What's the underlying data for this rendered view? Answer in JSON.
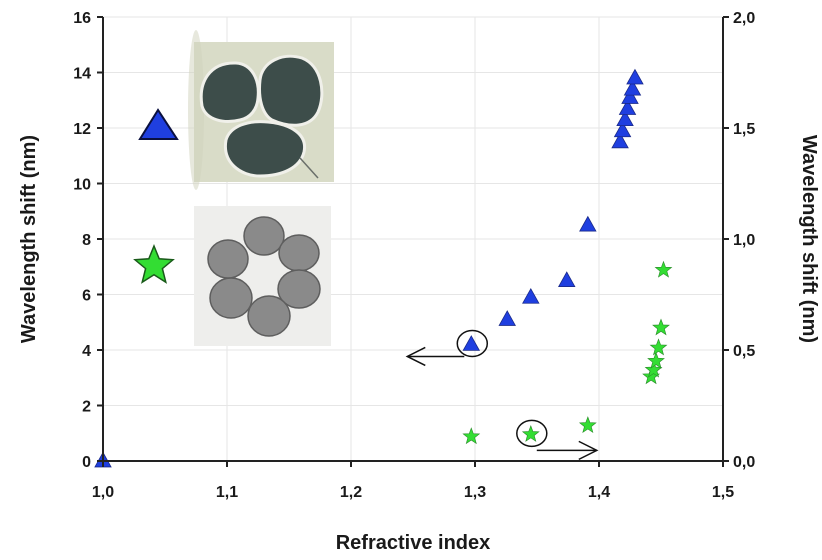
{
  "chart_data": {
    "type": "scatter",
    "xlabel": "Refractive index",
    "ylabel_left": "Wavelength shift (nm)",
    "ylabel_right": "Wavelength shift (nm)",
    "xlim": [
      1.0,
      1.5
    ],
    "ylim_left": [
      0,
      16
    ],
    "ylim_right": [
      0,
      2
    ],
    "x_ticks": [
      "1,0",
      "1,1",
      "1,2",
      "1,3",
      "1,4",
      "1,5"
    ],
    "y_ticks_left": [
      "0",
      "2",
      "4",
      "6",
      "8",
      "10",
      "12",
      "14",
      "16"
    ],
    "y_ticks_right": [
      "0,0",
      "0,5",
      "1,0",
      "1,5",
      "2,0"
    ],
    "grid": true,
    "series": [
      {
        "marker": "triangle",
        "color": "#1f3fe0",
        "axis": "left",
        "points": [
          [
            1.0,
            0.0
          ],
          [
            1.297,
            4.2
          ],
          [
            1.326,
            5.1
          ],
          [
            1.345,
            5.9
          ],
          [
            1.374,
            6.5
          ],
          [
            1.391,
            8.5
          ],
          [
            1.417,
            11.5
          ],
          [
            1.419,
            11.9
          ],
          [
            1.421,
            12.3
          ],
          [
            1.423,
            12.7
          ],
          [
            1.425,
            13.1
          ],
          [
            1.427,
            13.4
          ],
          [
            1.429,
            13.8
          ]
        ]
      },
      {
        "marker": "star",
        "color": "#33dd33",
        "axis": "right",
        "points": [
          [
            1.297,
            0.11
          ],
          [
            1.345,
            0.12
          ],
          [
            1.391,
            0.16
          ],
          [
            1.442,
            0.38
          ],
          [
            1.444,
            0.41
          ],
          [
            1.446,
            0.45
          ],
          [
            1.448,
            0.51
          ],
          [
            1.45,
            0.6
          ],
          [
            1.452,
            0.86
          ]
        ]
      }
    ],
    "annotations": [
      {
        "type": "circle-arrow",
        "series": 0,
        "point": 1,
        "direction": "left"
      },
      {
        "type": "circle-arrow",
        "series": 1,
        "point": 1,
        "direction": "right"
      }
    ],
    "legend": [
      {
        "marker": "triangle",
        "color": "#1f3fe0",
        "inset": "three-core fiber cross-section"
      },
      {
        "marker": "star",
        "color": "#33dd33",
        "inset": "six-core fiber cross-section"
      }
    ]
  }
}
